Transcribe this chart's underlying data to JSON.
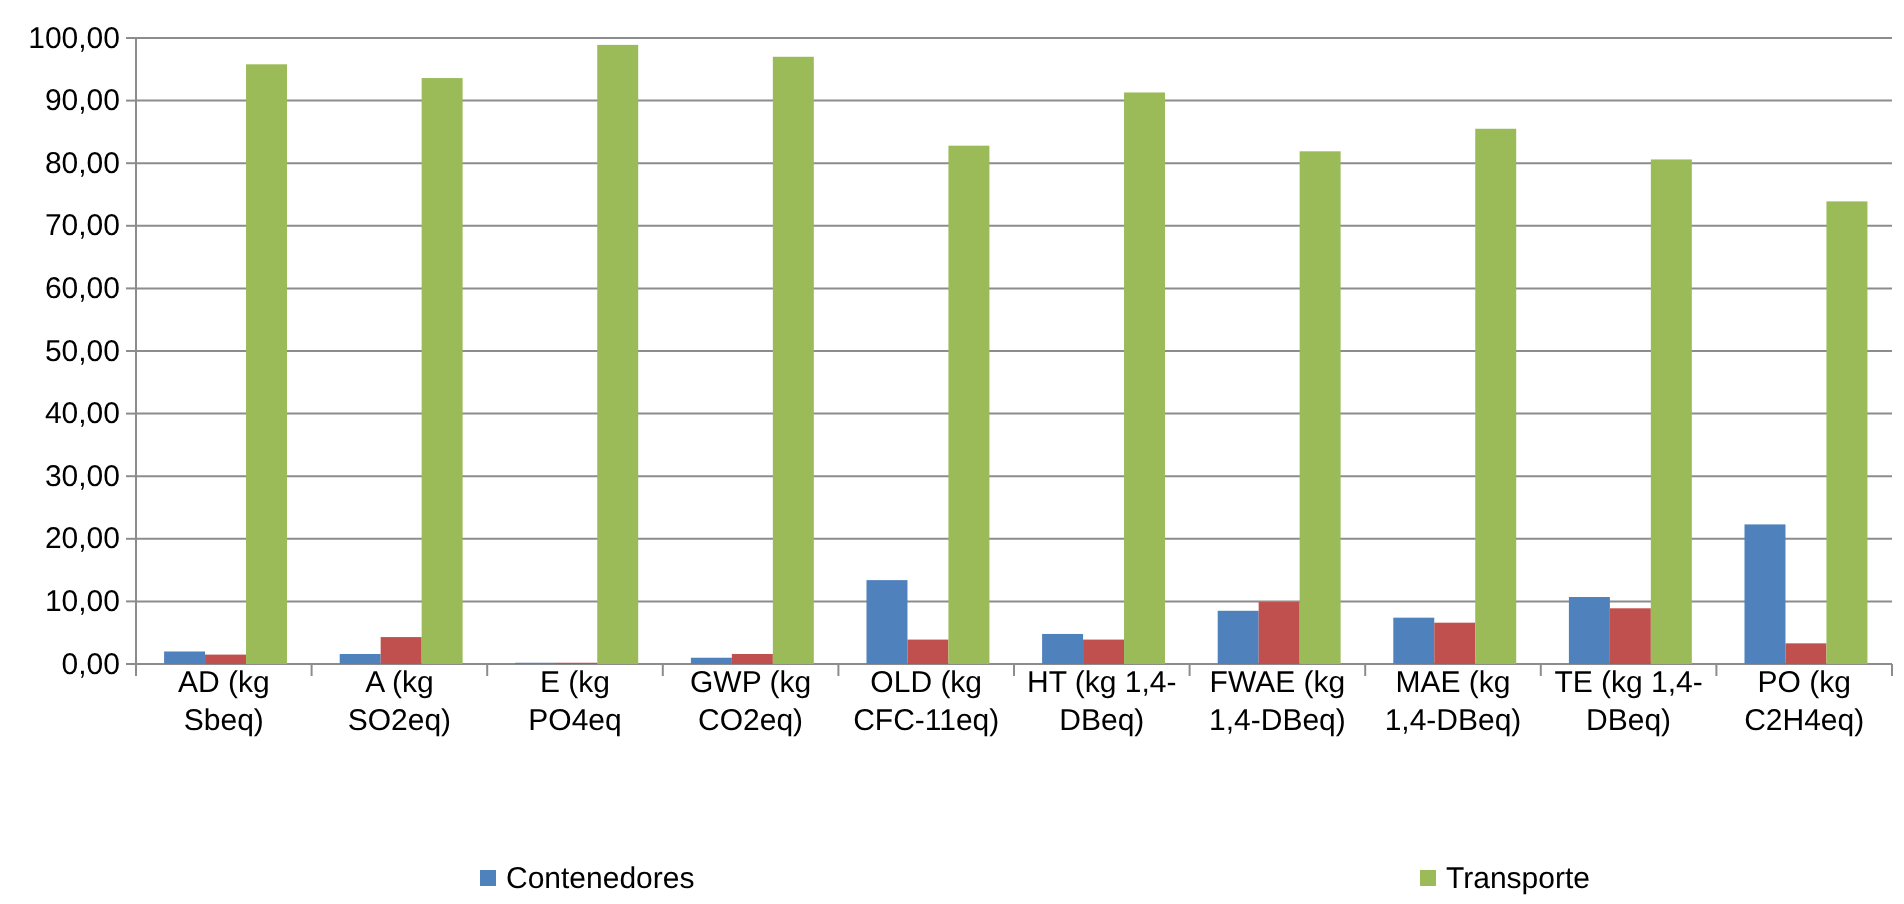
{
  "chart_data": {
    "type": "bar",
    "categories": [
      "AD (kg Sbeq)",
      "A (kg SO2eq)",
      "E (kg PO4eq",
      "GWP (kg CO2eq)",
      "OLD (kg CFC-11eq)",
      "HT (kg 1,4-DBeq)",
      "FWAE (kg 1,4-DBeq)",
      "MAE (kg 1,4-DBeq)",
      "TE (kg 1,4-DBeq)",
      "PO (kg C2H4eq)"
    ],
    "series": [
      {
        "name": "Contenedores",
        "color": "#4f81bd",
        "values": [
          2.0,
          1.6,
          0.2,
          1.0,
          13.4,
          4.8,
          8.5,
          7.4,
          10.7,
          22.3
        ]
      },
      {
        "color": "#c0504d",
        "values": [
          1.5,
          4.3,
          0.2,
          1.6,
          3.9,
          3.9,
          9.9,
          6.6,
          8.9,
          3.3
        ]
      },
      {
        "name": "Transporte",
        "color": "#9bbb59",
        "values": [
          95.8,
          93.6,
          98.9,
          97.0,
          82.8,
          91.3,
          81.9,
          85.5,
          80.6,
          73.9
        ]
      }
    ],
    "ylim": [
      0,
      100
    ],
    "yticks": [
      {
        "value": 0,
        "label": "0,00"
      },
      {
        "value": 10,
        "label": "10,00"
      },
      {
        "value": 20,
        "label": "20,00"
      },
      {
        "value": 30,
        "label": "30,00"
      },
      {
        "value": 40,
        "label": "40,00"
      },
      {
        "value": 50,
        "label": "50,00"
      },
      {
        "value": 60,
        "label": "60,00"
      },
      {
        "value": 70,
        "label": "70,00"
      },
      {
        "value": 80,
        "label": "80,00"
      },
      {
        "value": 90,
        "label": "90,00"
      },
      {
        "value": 100,
        "label": "100,00"
      }
    ],
    "grid": "y",
    "legend": "bottom"
  }
}
